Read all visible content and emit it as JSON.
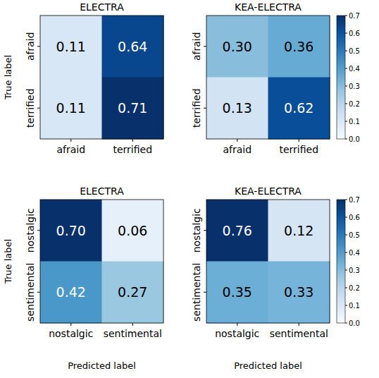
{
  "chart_data": [
    {
      "type": "heatmap",
      "title": "ELECTRA",
      "x": [
        "afraid",
        "terrified"
      ],
      "y": [
        "afraid",
        "terrified"
      ],
      "cells": [
        [
          0.11,
          0.64
        ],
        [
          0.11,
          0.71
        ]
      ],
      "color": "Blues",
      "color_range": [
        0,
        0.7
      ],
      "data_labels": true,
      "y_label": "True label"
    },
    {
      "type": "heatmap",
      "title": "KEA-ELECTRA",
      "x": [
        "afraid",
        "terrified"
      ],
      "y": [
        "afraid",
        "terrified"
      ],
      "cells": [
        [
          0.3,
          0.36
        ],
        [
          0.13,
          0.62
        ]
      ],
      "color": "Blues",
      "color_range": [
        0,
        0.7
      ],
      "colorbar_ticks": [
        {
          "value": 0,
          "label": "0.0"
        },
        0.1,
        0.2,
        0.3,
        0.4,
        0.5,
        0.6,
        0.7
      ],
      "data_labels": true
    },
    {
      "type": "heatmap",
      "title": "ELECTRA",
      "x": [
        "nostalgic",
        "sentimental"
      ],
      "y": [
        "nostalgic",
        "sentimental"
      ],
      "cells": [
        [
          0.7,
          0.06
        ],
        [
          0.42,
          0.27
        ]
      ],
      "color": "Blues",
      "color_range": [
        0,
        0.7
      ],
      "data_labels": true,
      "y_label": "True label",
      "x_label": "Predicted label"
    },
    {
      "type": "heatmap",
      "title": "KEA-ELECTRA",
      "x": [
        "nostalgic",
        "sentimental"
      ],
      "y": [
        "nostalgic",
        "sentimental"
      ],
      "cells": [
        [
          0.76,
          0.12
        ],
        [
          0.35,
          0.33
        ]
      ],
      "color": "Blues",
      "color_range": [
        0,
        0.7
      ],
      "colorbar_ticks": [
        {
          "value": 0,
          "label": "0.0"
        },
        0.1,
        0.2,
        0.3,
        0.4,
        0.5,
        0.6,
        0.7
      ],
      "data_labels": true,
      "x_label": "Predicted label"
    }
  ]
}
